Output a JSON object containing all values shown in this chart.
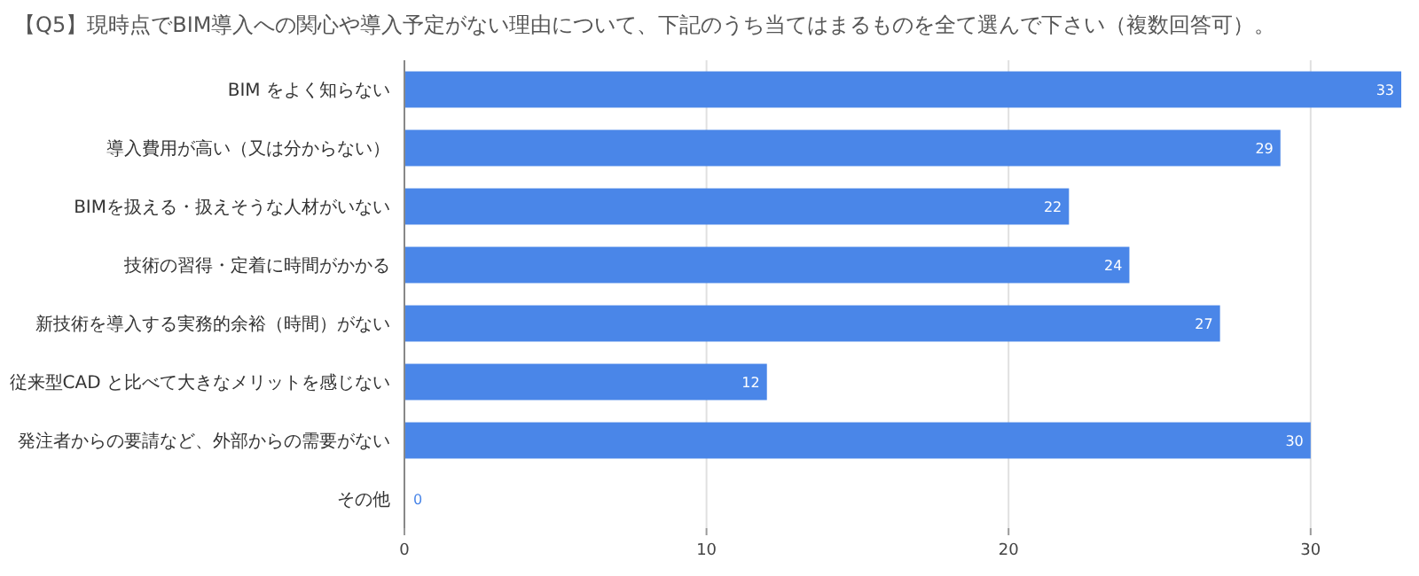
{
  "chart_data": {
    "type": "bar",
    "orientation": "horizontal",
    "title": "【Q5】現時点でBIM導入への関心や導入予定がない理由について、下記のうち当てはまるものを全て選んで下さい（複数回答可）。",
    "categories": [
      "BIM をよく知らない",
      "導入費用が高い（又は分からない）",
      "BIMを扱える・扱えそうな人材がいない",
      "技術の習得・定着に時間がかかる",
      "新技術を導入する実務的余裕（時間）がない",
      "従来型CAD と比べて大きなメリットを感じない",
      "発注者からの要請など、外部からの需要がない",
      "その他"
    ],
    "values": [
      33,
      29,
      22,
      24,
      27,
      12,
      30,
      0
    ],
    "color": "#4a86e8",
    "xlim": [
      0,
      33
    ],
    "xticks": [
      0,
      10,
      20,
      30
    ],
    "grid": "x",
    "data_labels": true
  }
}
